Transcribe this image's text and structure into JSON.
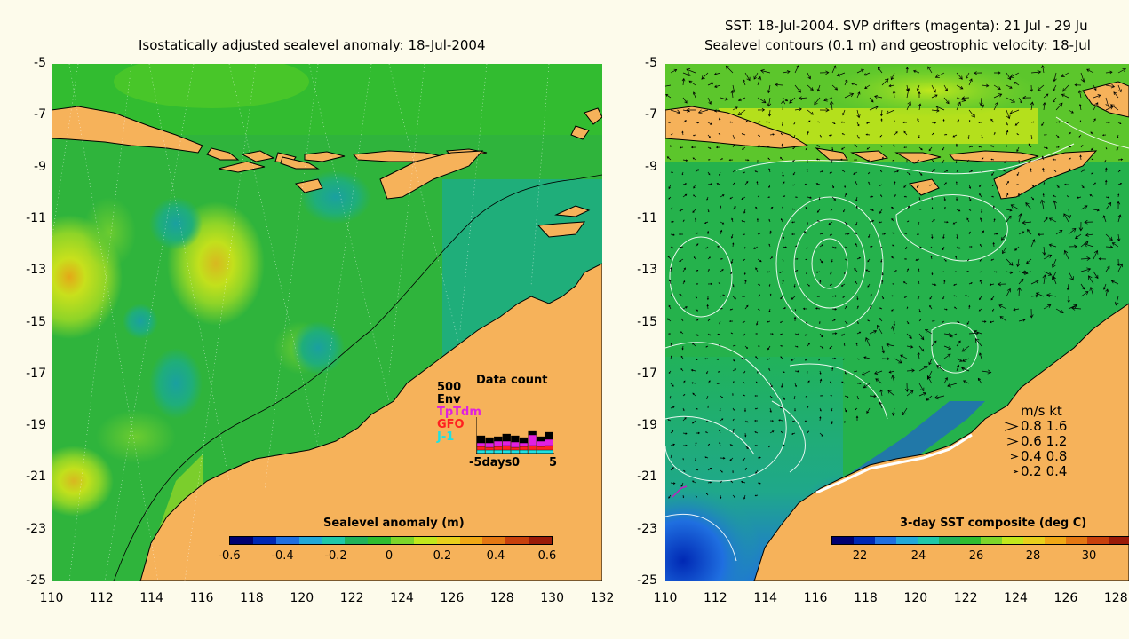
{
  "left": {
    "title": "Isostatically adjusted sealevel anomaly: 18-Jul-2004",
    "y_ticks": [
      "-5",
      "-7",
      "-9",
      "-11",
      "-13",
      "-15",
      "-17",
      "-19",
      "-21",
      "-23",
      "-25"
    ],
    "x_ticks": [
      "110",
      "112",
      "114",
      "116",
      "118",
      "120",
      "122",
      "124",
      "126",
      "128",
      "130",
      "132"
    ],
    "colorbar": {
      "title": "Sealevel anomaly (m)",
      "ticks": [
        "-0.6",
        "-0.4",
        "-0.2",
        "0",
        "0.2",
        "0.4",
        "0.6"
      ],
      "colors": [
        "#000070",
        "#0028b4",
        "#1f6fe0",
        "#22a8d8",
        "#1fc7a8",
        "#21b25a",
        "#2fbd2f",
        "#7dd62a",
        "#c2e81c",
        "#e8d01b",
        "#f0a815",
        "#e47712",
        "#c8400c",
        "#9a1a08"
      ]
    },
    "data_count": {
      "title": "Data count",
      "max_label": "500",
      "sources": [
        {
          "name": "Env",
          "color": "#000000"
        },
        {
          "name": "TpTdm",
          "color": "#e020e0"
        },
        {
          "name": "GFO",
          "color": "#ff2020"
        },
        {
          "name": "J-1",
          "color": "#20e0e0"
        }
      ],
      "x_left": "-5days",
      "x_mid": "0",
      "x_right": "5"
    }
  },
  "right": {
    "title_line1": "SST: 18-Jul-2004. SVP drifters (magenta): 21 Jul - 29 Ju",
    "title_line2": "Sealevel contours (0.1 m) and geostrophic velocity: 18-Jul",
    "y_ticks": [
      "-5",
      "-7",
      "-9",
      "-11",
      "-13",
      "-15",
      "-17",
      "-19",
      "-21",
      "-23",
      "-25"
    ],
    "x_ticks": [
      "110",
      "112",
      "114",
      "116",
      "118",
      "120",
      "122",
      "124",
      "126",
      "128"
    ],
    "colorbar": {
      "title": "3-day SST composite (deg C)",
      "ticks": [
        "22",
        "24",
        "26",
        "28",
        "30"
      ],
      "colors": [
        "#000070",
        "#0028b4",
        "#1f6fe0",
        "#22a8d8",
        "#1fc7a8",
        "#21b25a",
        "#2fbd2f",
        "#7dd62a",
        "#c2e81c",
        "#e8d01b",
        "#f0a815",
        "#e47712",
        "#c8400c",
        "#9a1a08"
      ]
    },
    "velocity_legend": {
      "header": "m/s  kt",
      "rows": [
        "0.8  1.6",
        "0.6  1.2",
        "0.4  0.8",
        "0.2  0.4"
      ]
    }
  },
  "colors": {
    "land": "#f6b25a",
    "ocean_base": "#22ae4a",
    "ocean_mid": "#3cbc3c",
    "ocean_high": "#8ed428",
    "ocean_peak": "#d8c820",
    "ocean_low": "#1a9e70",
    "background": "#fdfbeb"
  }
}
